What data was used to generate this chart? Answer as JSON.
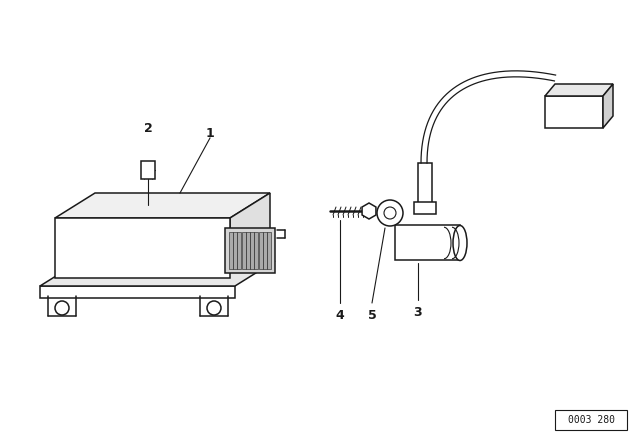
{
  "bg_color": "#ffffff",
  "line_color": "#1a1a1a",
  "fig_w": 6.4,
  "fig_h": 4.48,
  "dpi": 100,
  "part_no": "0003 280"
}
